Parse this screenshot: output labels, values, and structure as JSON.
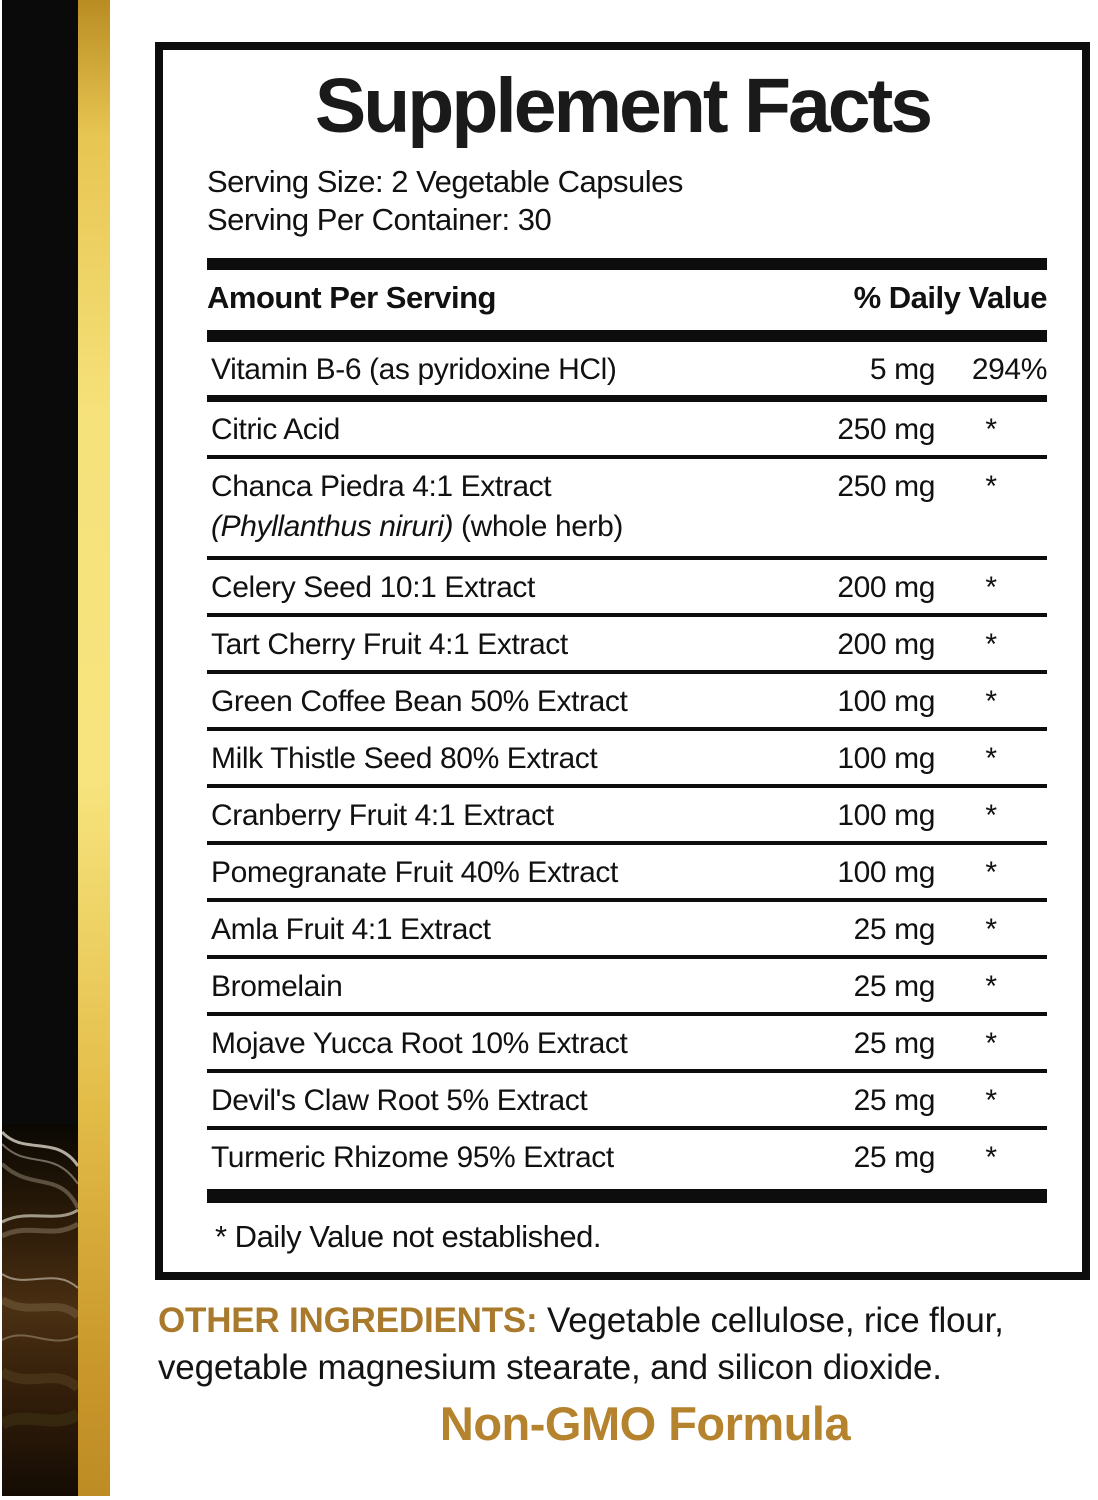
{
  "panel": {
    "title": "Supplement Facts",
    "serving_size": "Serving Size: 2 Vegetable Capsules",
    "serving_per_container": "Serving Per Container: 30",
    "header": {
      "amount": "Amount Per Serving",
      "daily_value": "% Daily Value"
    },
    "rows": [
      {
        "name": "Vitamin B-6 (as pyridoxine HCl)",
        "amount": "5 mg",
        "dv": "294%"
      },
      {
        "name": "Citric Acid",
        "amount": "250 mg",
        "dv": "*"
      },
      {
        "name": "Chanca Piedra 4:1 Extract",
        "name_line2_italic": "(Phyllanthus niruri)",
        "name_line2_regular": " (whole herb)",
        "amount": "250 mg",
        "dv": "*"
      },
      {
        "name": "Celery Seed 10:1 Extract",
        "amount": "200 mg",
        "dv": "*"
      },
      {
        "name": "Tart Cherry Fruit 4:1 Extract",
        "amount": "200 mg",
        "dv": "*"
      },
      {
        "name": "Green Coffee Bean 50% Extract",
        "amount": "100 mg",
        "dv": "*"
      },
      {
        "name": "Milk Thistle Seed 80% Extract",
        "amount": "100 mg",
        "dv": "*"
      },
      {
        "name": "Cranberry Fruit 4:1 Extract",
        "amount": "100 mg",
        "dv": "*"
      },
      {
        "name": "Pomegranate Fruit 40% Extract",
        "amount": "100 mg",
        "dv": "*"
      },
      {
        "name": "Amla Fruit 4:1 Extract",
        "amount": "25 mg",
        "dv": "*"
      },
      {
        "name": "Bromelain",
        "amount": "25 mg",
        "dv": "*"
      },
      {
        "name": "Mojave Yucca Root 10% Extract",
        "amount": "25 mg",
        "dv": "*"
      },
      {
        "name": "Devil's Claw Root 5% Extract",
        "amount": "25 mg",
        "dv": "*"
      },
      {
        "name": "Turmeric Rhizome 95% Extract",
        "amount": "25 mg",
        "dv": "*"
      }
    ],
    "footnote": "* Daily Value not established."
  },
  "other_ingredients": {
    "label": "OTHER INGREDIENTS:",
    "text": " Vegetable cellulose, rice flour, vegetable magnesium stearate, and silicon dioxide."
  },
  "non_gmo": "Non-GMO Formula",
  "colors": {
    "gold_text": "#a9792c",
    "non_gmo_gold": "#b5832d",
    "panel_border": "#0d0d0d"
  }
}
